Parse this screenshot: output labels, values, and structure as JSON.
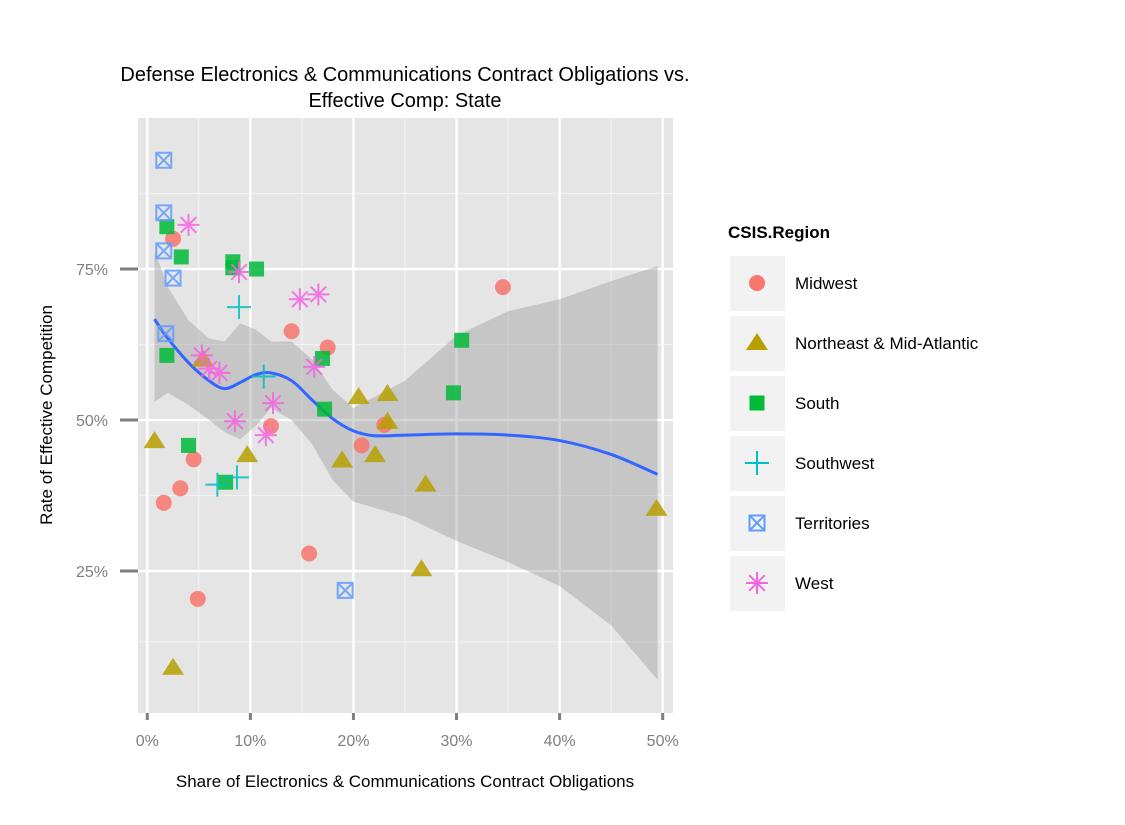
{
  "chart_data": {
    "type": "scatter",
    "title_lines": [
      "Defense Electronics & Communications Contract Obligations vs.",
      "Effective Comp: State"
    ],
    "xlabel": "Share of Electronics & Communications Contract Obligations",
    "ylabel": "Rate of Effective Competition",
    "xlim": [
      -0.009,
      0.51
    ],
    "ylim": [
      0.015,
      1.0
    ],
    "x_ticks": [
      0,
      0.1,
      0.2,
      0.3,
      0.4,
      0.5
    ],
    "x_tick_labels": [
      "0%",
      "10%",
      "20%",
      "30%",
      "40%",
      "50%"
    ],
    "y_ticks": [
      0.25,
      0.5,
      0.75
    ],
    "y_tick_labels": [
      "25%",
      "50%",
      "75%"
    ],
    "grid": true,
    "legend": {
      "title": "CSIS.Region",
      "position": "right",
      "entries": [
        {
          "label": "Midwest",
          "shape": "circle",
          "color": "#F8766D"
        },
        {
          "label": "Northeast & Mid-Atlantic",
          "shape": "triangle",
          "color": "#B79F00"
        },
        {
          "label": "South",
          "shape": "square",
          "color": "#00BA38"
        },
        {
          "label": "Southwest",
          "shape": "plus",
          "color": "#00BFC4"
        },
        {
          "label": "Territories",
          "shape": "boxx",
          "color": "#619CFF"
        },
        {
          "label": "West",
          "shape": "star",
          "color": "#F564E3"
        }
      ]
    },
    "series": [
      {
        "name": "Midwest",
        "points": [
          [
            0.025,
            0.8
          ],
          [
            0.345,
            0.72
          ],
          [
            0.14,
            0.647
          ],
          [
            0.175,
            0.62
          ],
          [
            0.208,
            0.458
          ],
          [
            0.23,
            0.492
          ],
          [
            0.12,
            0.49
          ],
          [
            0.045,
            0.435
          ],
          [
            0.032,
            0.387
          ],
          [
            0.016,
            0.363
          ],
          [
            0.157,
            0.279
          ],
          [
            0.049,
            0.204
          ]
        ]
      },
      {
        "name": "Northeast & Mid-Atlantic",
        "points": [
          [
            0.007,
            0.465
          ],
          [
            0.054,
            0.6
          ],
          [
            0.097,
            0.442
          ],
          [
            0.205,
            0.538
          ],
          [
            0.233,
            0.543
          ],
          [
            0.233,
            0.497
          ],
          [
            0.189,
            0.433
          ],
          [
            0.221,
            0.442
          ],
          [
            0.27,
            0.393
          ],
          [
            0.266,
            0.253
          ],
          [
            0.494,
            0.353
          ],
          [
            0.025,
            0.09
          ]
        ]
      },
      {
        "name": "South",
        "points": [
          [
            0.019,
            0.82
          ],
          [
            0.033,
            0.77
          ],
          [
            0.083,
            0.762
          ],
          [
            0.083,
            0.752
          ],
          [
            0.106,
            0.75
          ],
          [
            0.019,
            0.607
          ],
          [
            0.17,
            0.602
          ],
          [
            0.172,
            0.518
          ],
          [
            0.297,
            0.545
          ],
          [
            0.305,
            0.632
          ],
          [
            0.04,
            0.458
          ],
          [
            0.076,
            0.397
          ]
        ]
      },
      {
        "name": "Southwest",
        "points": [
          [
            0.089,
            0.687
          ],
          [
            0.113,
            0.572
          ],
          [
            0.087,
            0.405
          ],
          [
            0.068,
            0.393
          ]
        ]
      },
      {
        "name": "Territories",
        "points": [
          [
            0.016,
            0.93
          ],
          [
            0.016,
            0.843
          ],
          [
            0.016,
            0.78
          ],
          [
            0.025,
            0.735
          ],
          [
            0.018,
            0.643
          ],
          [
            0.192,
            0.218
          ]
        ]
      },
      {
        "name": "West",
        "points": [
          [
            0.04,
            0.823
          ],
          [
            0.089,
            0.745
          ],
          [
            0.148,
            0.7
          ],
          [
            0.166,
            0.708
          ],
          [
            0.053,
            0.607
          ],
          [
            0.06,
            0.585
          ],
          [
            0.07,
            0.578
          ],
          [
            0.162,
            0.588
          ],
          [
            0.122,
            0.528
          ],
          [
            0.085,
            0.498
          ],
          [
            0.115,
            0.475
          ]
        ]
      }
    ],
    "smooth": {
      "type": "loess",
      "color": "#3366FF",
      "points": [
        [
          0.007,
          0.667
        ],
        [
          0.02,
          0.635
        ],
        [
          0.04,
          0.595
        ],
        [
          0.06,
          0.565
        ],
        [
          0.075,
          0.552
        ],
        [
          0.09,
          0.562
        ],
        [
          0.105,
          0.575
        ],
        [
          0.12,
          0.578
        ],
        [
          0.14,
          0.565
        ],
        [
          0.16,
          0.533
        ],
        [
          0.18,
          0.502
        ],
        [
          0.2,
          0.482
        ],
        [
          0.22,
          0.474
        ],
        [
          0.25,
          0.475
        ],
        [
          0.3,
          0.477
        ],
        [
          0.35,
          0.475
        ],
        [
          0.4,
          0.466
        ],
        [
          0.45,
          0.443
        ],
        [
          0.495,
          0.41
        ]
      ],
      "ci_upper": [
        [
          0.007,
          0.78
        ],
        [
          0.02,
          0.72
        ],
        [
          0.04,
          0.665
        ],
        [
          0.06,
          0.635
        ],
        [
          0.075,
          0.63
        ],
        [
          0.09,
          0.66
        ],
        [
          0.105,
          0.65
        ],
        [
          0.12,
          0.63
        ],
        [
          0.14,
          0.63
        ],
        [
          0.16,
          0.6
        ],
        [
          0.18,
          0.55
        ],
        [
          0.2,
          0.52
        ],
        [
          0.25,
          0.565
        ],
        [
          0.3,
          0.64
        ],
        [
          0.35,
          0.68
        ],
        [
          0.4,
          0.7
        ],
        [
          0.45,
          0.73
        ],
        [
          0.495,
          0.755
        ]
      ],
      "ci_lower": [
        [
          0.007,
          0.53
        ],
        [
          0.02,
          0.545
        ],
        [
          0.04,
          0.525
        ],
        [
          0.06,
          0.5
        ],
        [
          0.075,
          0.48
        ],
        [
          0.09,
          0.468
        ],
        [
          0.105,
          0.49
        ],
        [
          0.12,
          0.52
        ],
        [
          0.14,
          0.5
        ],
        [
          0.16,
          0.46
        ],
        [
          0.18,
          0.4
        ],
        [
          0.2,
          0.365
        ],
        [
          0.25,
          0.34
        ],
        [
          0.3,
          0.3
        ],
        [
          0.35,
          0.265
        ],
        [
          0.4,
          0.225
        ],
        [
          0.45,
          0.16
        ],
        [
          0.495,
          0.07
        ]
      ]
    }
  }
}
